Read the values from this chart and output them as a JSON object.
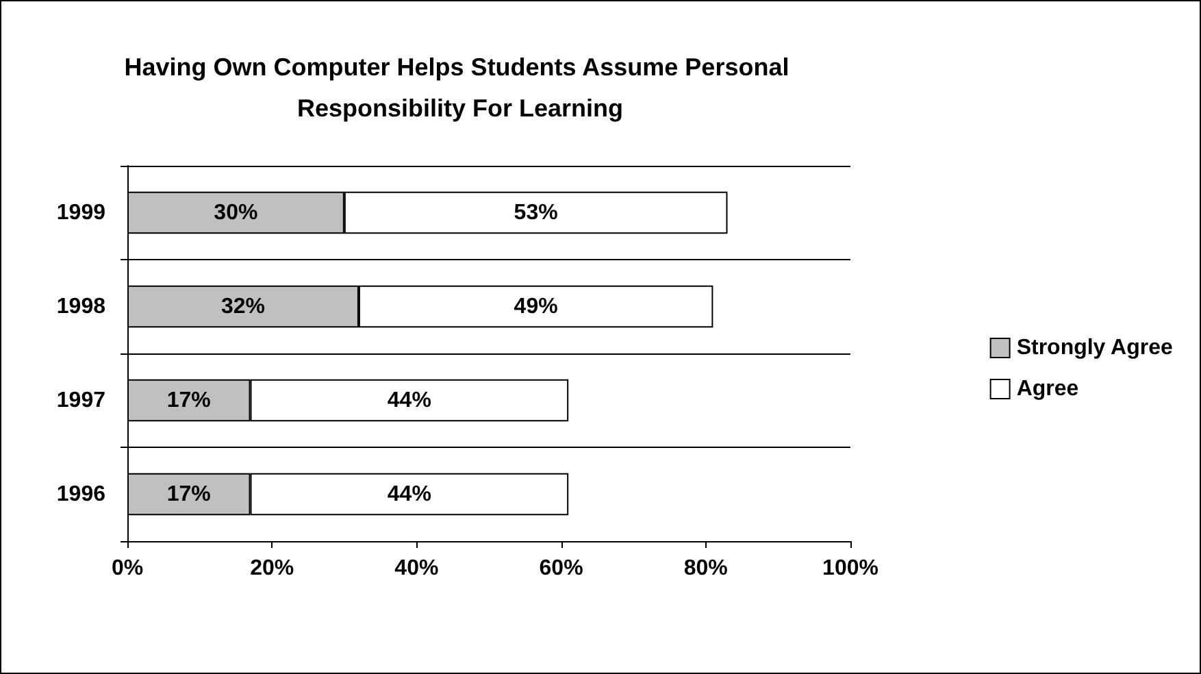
{
  "chart_data": {
    "type": "bar",
    "orientation": "horizontal",
    "stacked": true,
    "title": "Having Own Computer Helps Students Assume Personal Responsibility For Learning",
    "categories": [
      "1999",
      "1998",
      "1997",
      "1996"
    ],
    "series": [
      {
        "name": "Strongly Agree",
        "color": "#c0c0c0",
        "values": [
          30,
          32,
          17,
          17
        ],
        "value_labels": [
          "30%",
          "32%",
          "17%",
          "17%"
        ]
      },
      {
        "name": "Agree",
        "color": "#ffffff",
        "values": [
          53,
          49,
          44,
          44
        ],
        "value_labels": [
          "53%",
          "49%",
          "44%",
          "44%"
        ]
      }
    ],
    "xlim": [
      0,
      100
    ],
    "xticks": [
      {
        "value": 0,
        "label": "0%"
      },
      {
        "value": 20,
        "label": "20%"
      },
      {
        "value": 40,
        "label": "40%"
      },
      {
        "value": 60,
        "label": "60%"
      },
      {
        "value": 80,
        "label": "80%"
      },
      {
        "value": 100,
        "label": "100%"
      }
    ],
    "grid": "y",
    "legend": "right"
  }
}
